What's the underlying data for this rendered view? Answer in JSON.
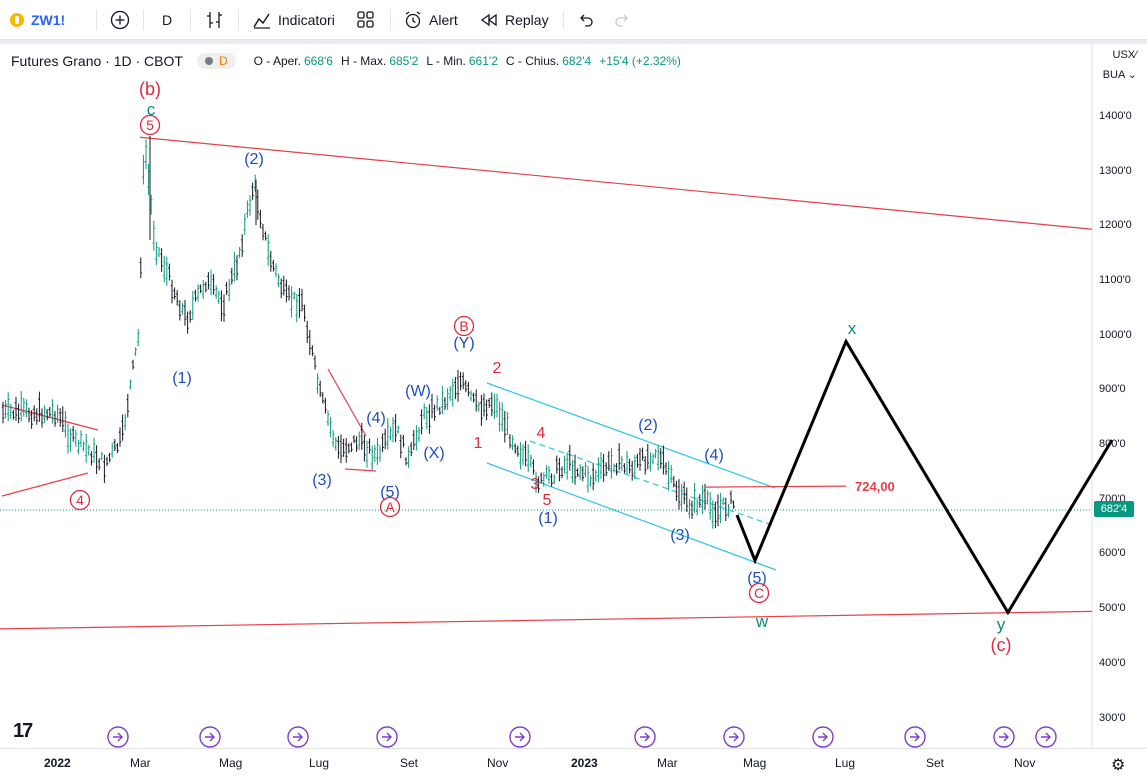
{
  "toolbar": {
    "symbol": "ZW1!",
    "interval": "D",
    "indicators_label": "Indicatori",
    "alert_label": "Alert",
    "replay_label": "Replay"
  },
  "legend": {
    "title": "Futures Grano · 1D · CBOT",
    "badge_letter": "D",
    "open_key": "O - Aper.",
    "open": "668'6",
    "high_key": "H - Max.",
    "high": "685'2",
    "low_key": "L - Min.",
    "low": "661'2",
    "close_key": "C - Chius.",
    "close": "682'4",
    "change": "+15'4 (+2.32%)"
  },
  "axis": {
    "currency": "USX",
    "currency_suffix": "⁄",
    "unit": "BUA"
  },
  "current_price_tag": "682'4",
  "colors": {
    "up": "#089981",
    "down": "#131722",
    "trend": "#e83f4a",
    "channel": "#2fc4e4",
    "blue_label": "#1e4fc0",
    "red_label": "#e0283e",
    "green_label": "#0e8a7a",
    "projection": "#000000",
    "accent": "#7b3fc8"
  },
  "chart_data": {
    "type": "line",
    "instrument": "Futures Grano · 1D · CBOT",
    "y_ticks": [
      "1400'0",
      "1300'0",
      "1200'0",
      "1100'0",
      "1000'0",
      "900'0",
      "800'0",
      "700'0",
      "600'0",
      "500'0",
      "400'0",
      "300'0"
    ],
    "y_tick_values": [
      1400,
      1300,
      1200,
      1100,
      1000,
      900,
      800,
      700,
      600,
      500,
      400,
      300
    ],
    "x_ticks": [
      "2022",
      "Mar",
      "Mag",
      "Lug",
      "Set",
      "Nov",
      "2023",
      "Mar",
      "Mag",
      "Lug",
      "Set",
      "Nov"
    ],
    "x_ticks_bold": [
      "2022",
      "2023"
    ],
    "x_tick_dates": [
      "2022-01-01",
      "2022-03-01",
      "2022-05-01",
      "2022-07-01",
      "2022-09-01",
      "2022-11-01",
      "2023-01-01",
      "2023-03-01",
      "2023-05-01",
      "2023-07-01",
      "2023-09-01",
      "2023-11-01"
    ],
    "ylim": [
      250,
      1490
    ],
    "price_path": [
      [
        "2022-01-01",
        860
      ],
      [
        "2022-01-12",
        810
      ],
      [
        "2022-01-24",
        790
      ],
      [
        "2022-02-04",
        765
      ],
      [
        "2022-02-16",
        810
      ],
      [
        "2022-02-28",
        1000
      ],
      [
        "2022-03-04",
        1360
      ],
      [
        "2022-03-11",
        1170
      ],
      [
        "2022-03-20",
        1110
      ],
      [
        "2022-04-01",
        1030
      ],
      [
        "2022-04-14",
        1100
      ],
      [
        "2022-04-26",
        1060
      ],
      [
        "2022-05-05",
        1130
      ],
      [
        "2022-05-17",
        1280
      ],
      [
        "2022-05-27",
        1150
      ],
      [
        "2022-06-08",
        1070
      ],
      [
        "2022-06-20",
        1060
      ],
      [
        "2022-07-01",
        900
      ],
      [
        "2022-07-14",
        790
      ],
      [
        "2022-07-28",
        810
      ],
      [
        "2022-08-10",
        780
      ],
      [
        "2022-08-23",
        830
      ],
      [
        "2022-09-01",
        770
      ],
      [
        "2022-09-10",
        850
      ],
      [
        "2022-09-25",
        880
      ],
      [
        "2022-10-06",
        920
      ],
      [
        "2022-10-18",
        870
      ],
      [
        "2022-10-30",
        880
      ],
      [
        "2022-11-10",
        820
      ],
      [
        "2022-11-22",
        770
      ],
      [
        "2022-12-01",
        730
      ],
      [
        "2022-12-20",
        770
      ],
      [
        "2023-01-05",
        740
      ],
      [
        "2023-01-22",
        770
      ],
      [
        "2023-02-05",
        760
      ],
      [
        "2023-02-21",
        790
      ],
      [
        "2023-03-05",
        730
      ],
      [
        "2023-03-16",
        690
      ],
      [
        "2023-03-26",
        700
      ],
      [
        "2023-04-04",
        680
      ],
      [
        "2023-04-14",
        695
      ],
      [
        "2023-04-24",
        682
      ]
    ],
    "horizontal_level": {
      "label": "724,00",
      "value": 724
    },
    "projection_path": [
      [
        "2023-04-24",
        682
      ],
      [
        "2023-05-01",
        590
      ],
      [
        "2023-07-01",
        990
      ],
      [
        "2023-10-21",
        495
      ],
      [
        "2024-01-01",
        810
      ]
    ],
    "trendlines": {
      "upper_red": [
        [
          "2022-03-01",
          1363
        ],
        [
          "2024-01-01",
          1195
        ]
      ],
      "lower_red": [
        [
          "2022-01-01",
          465
        ],
        [
          "2024-01-01",
          497
        ]
      ]
    },
    "wave_labels": {
      "blue": [
        "(2)",
        "(1)",
        "(3)",
        "(4)",
        "(5)",
        "(W)",
        "(X)",
        "(Y)",
        "(1)",
        "(2)",
        "(3)",
        "(4)",
        "(5)"
      ],
      "red": [
        "(b)",
        "2",
        "1",
        "4",
        "3",
        "5",
        "(c)"
      ],
      "circled_red": [
        "5",
        "4",
        "A",
        "B",
        "C"
      ],
      "green": [
        "c",
        "x",
        "w",
        "y"
      ]
    }
  }
}
